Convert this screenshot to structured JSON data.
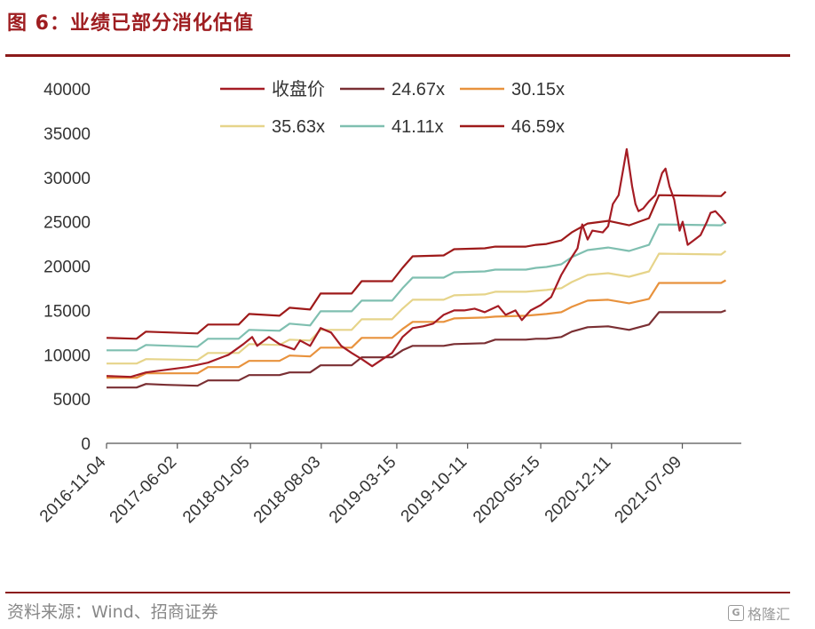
{
  "header": {
    "title": "图 6：业绩已部分消化估值"
  },
  "footer": {
    "source": "资料来源：Wind、招商证券",
    "watermark": "格隆汇"
  },
  "chart_data": {
    "type": "line",
    "title": "",
    "xlabel": "",
    "ylabel": "",
    "ylim": [
      0,
      40000
    ],
    "yticks": [
      0,
      5000,
      10000,
      15000,
      20000,
      25000,
      30000,
      35000,
      40000
    ],
    "xlim": [
      "2016-11-04",
      "2021-12-31"
    ],
    "xticks": [
      "2016-11-04",
      "2017-06-02",
      "2018-01-05",
      "2018-08-03",
      "2019-03-15",
      "2019-10-11",
      "2020-05-15",
      "2020-12-11",
      "2021-07-09"
    ],
    "grid": false,
    "legend": "top, two rows",
    "series": [
      {
        "name": "收盘价",
        "color": "#a51c24",
        "points": [
          [
            "2016-11-04",
            7600
          ],
          [
            "2017-01-15",
            7500
          ],
          [
            "2017-03-01",
            8000
          ],
          [
            "2017-05-01",
            8300
          ],
          [
            "2017-07-01",
            8600
          ],
          [
            "2017-09-01",
            9100
          ],
          [
            "2017-11-01",
            10000
          ],
          [
            "2017-12-15",
            11200
          ],
          [
            "2018-01-10",
            12000
          ],
          [
            "2018-01-25",
            11000
          ],
          [
            "2018-03-01",
            12000
          ],
          [
            "2018-04-01",
            11200
          ],
          [
            "2018-05-15",
            10600
          ],
          [
            "2018-06-01",
            11600
          ],
          [
            "2018-07-01",
            11000
          ],
          [
            "2018-08-01",
            13000
          ],
          [
            "2018-09-01",
            12500
          ],
          [
            "2018-10-01",
            11000
          ],
          [
            "2018-11-01",
            10200
          ],
          [
            "2018-12-01",
            9500
          ],
          [
            "2019-01-01",
            8700
          ],
          [
            "2019-02-01",
            9500
          ],
          [
            "2019-03-01",
            10200
          ],
          [
            "2019-04-01",
            12000
          ],
          [
            "2019-05-01",
            13000
          ],
          [
            "2019-06-01",
            13200
          ],
          [
            "2019-07-01",
            13500
          ],
          [
            "2019-08-01",
            14500
          ],
          [
            "2019-09-01",
            15000
          ],
          [
            "2019-10-01",
            15000
          ],
          [
            "2019-11-01",
            15200
          ],
          [
            "2019-12-01",
            14800
          ],
          [
            "2020-01-10",
            15500
          ],
          [
            "2020-02-01",
            14500
          ],
          [
            "2020-03-01",
            15000
          ],
          [
            "2020-03-20",
            13900
          ],
          [
            "2020-04-15",
            15000
          ],
          [
            "2020-05-15",
            15600
          ],
          [
            "2020-06-15",
            16500
          ],
          [
            "2020-07-15",
            19000
          ],
          [
            "2020-08-15",
            21000
          ],
          [
            "2020-09-01",
            22000
          ],
          [
            "2020-09-15",
            24700
          ],
          [
            "2020-10-01",
            23000
          ],
          [
            "2020-10-15",
            24000
          ],
          [
            "2020-11-15",
            23800
          ],
          [
            "2020-12-01",
            24500
          ],
          [
            "2020-12-15",
            27000
          ],
          [
            "2021-01-01",
            28000
          ],
          [
            "2021-01-15",
            31000
          ],
          [
            "2021-01-25",
            33200
          ],
          [
            "2021-02-10",
            29000
          ],
          [
            "2021-02-20",
            27000
          ],
          [
            "2021-03-01",
            26200
          ],
          [
            "2021-03-15",
            26500
          ],
          [
            "2021-04-01",
            27300
          ],
          [
            "2021-04-20",
            28000
          ],
          [
            "2021-05-10",
            30500
          ],
          [
            "2021-05-20",
            31000
          ],
          [
            "2021-06-01",
            29000
          ],
          [
            "2021-06-15",
            27500
          ],
          [
            "2021-07-01",
            24000
          ],
          [
            "2021-07-10",
            25000
          ],
          [
            "2021-07-25",
            22400
          ],
          [
            "2021-08-15",
            23000
          ],
          [
            "2021-09-01",
            23500
          ],
          [
            "2021-09-20",
            25000
          ],
          [
            "2021-10-01",
            26000
          ],
          [
            "2021-10-15",
            26200
          ],
          [
            "2021-11-01",
            25500
          ],
          [
            "2021-11-15",
            24800
          ]
        ]
      },
      {
        "name": "24.67x",
        "color": "#7a2f33",
        "points": [
          [
            "2016-11-04",
            6300
          ],
          [
            "2017-02-01",
            6300
          ],
          [
            "2017-03-01",
            6700
          ],
          [
            "2017-05-01",
            6600
          ],
          [
            "2017-08-01",
            6500
          ],
          [
            "2017-09-01",
            7100
          ],
          [
            "2017-12-01",
            7100
          ],
          [
            "2018-01-01",
            7700
          ],
          [
            "2018-04-01",
            7700
          ],
          [
            "2018-05-01",
            8000
          ],
          [
            "2018-07-01",
            8000
          ],
          [
            "2018-08-01",
            8800
          ],
          [
            "2018-11-01",
            8800
          ],
          [
            "2018-12-01",
            9700
          ],
          [
            "2019-03-01",
            9700
          ],
          [
            "2019-04-01",
            10500
          ],
          [
            "2019-05-01",
            11000
          ],
          [
            "2019-08-01",
            11000
          ],
          [
            "2019-09-01",
            11200
          ],
          [
            "2019-12-01",
            11300
          ],
          [
            "2020-01-01",
            11700
          ],
          [
            "2020-04-01",
            11700
          ],
          [
            "2020-05-01",
            11800
          ],
          [
            "2020-06-01",
            11800
          ],
          [
            "2020-07-15",
            12000
          ],
          [
            "2020-08-15",
            12600
          ],
          [
            "2020-10-01",
            13100
          ],
          [
            "2020-12-01",
            13200
          ],
          [
            "2021-02-01",
            12800
          ],
          [
            "2021-04-01",
            13400
          ],
          [
            "2021-05-01",
            14800
          ],
          [
            "2021-11-01",
            14800
          ],
          [
            "2021-11-15",
            15000
          ]
        ]
      },
      {
        "name": "30.15x",
        "color": "#e8923d",
        "points": [
          [
            "2016-11-04",
            7400
          ],
          [
            "2017-02-01",
            7400
          ],
          [
            "2017-03-01",
            7900
          ],
          [
            "2017-08-01",
            7900
          ],
          [
            "2017-09-01",
            8600
          ],
          [
            "2017-12-01",
            8600
          ],
          [
            "2018-01-01",
            9300
          ],
          [
            "2018-04-01",
            9300
          ],
          [
            "2018-05-01",
            9900
          ],
          [
            "2018-07-01",
            9800
          ],
          [
            "2018-08-01",
            10800
          ],
          [
            "2018-11-01",
            10800
          ],
          [
            "2018-12-01",
            11900
          ],
          [
            "2019-03-01",
            11900
          ],
          [
            "2019-04-01",
            12900
          ],
          [
            "2019-05-01",
            13700
          ],
          [
            "2019-08-01",
            13700
          ],
          [
            "2019-09-01",
            14100
          ],
          [
            "2019-12-01",
            14200
          ],
          [
            "2020-01-01",
            14300
          ],
          [
            "2020-04-01",
            14400
          ],
          [
            "2020-05-01",
            14500
          ],
          [
            "2020-06-01",
            14600
          ],
          [
            "2020-07-15",
            14800
          ],
          [
            "2020-08-15",
            15400
          ],
          [
            "2020-10-01",
            16100
          ],
          [
            "2020-12-01",
            16200
          ],
          [
            "2021-02-01",
            15800
          ],
          [
            "2021-04-01",
            16300
          ],
          [
            "2021-05-01",
            18100
          ],
          [
            "2021-11-01",
            18100
          ],
          [
            "2021-11-15",
            18400
          ]
        ]
      },
      {
        "name": "35.63x",
        "color": "#e6d48a",
        "points": [
          [
            "2016-11-04",
            9000
          ],
          [
            "2017-02-01",
            9000
          ],
          [
            "2017-03-01",
            9500
          ],
          [
            "2017-08-01",
            9400
          ],
          [
            "2017-09-01",
            10200
          ],
          [
            "2017-12-01",
            10200
          ],
          [
            "2018-01-01",
            11200
          ],
          [
            "2018-04-01",
            11100
          ],
          [
            "2018-05-01",
            11700
          ],
          [
            "2018-07-01",
            11600
          ],
          [
            "2018-08-01",
            12800
          ],
          [
            "2018-11-01",
            12800
          ],
          [
            "2018-12-01",
            14000
          ],
          [
            "2019-03-01",
            14000
          ],
          [
            "2019-04-01",
            15200
          ],
          [
            "2019-05-01",
            16200
          ],
          [
            "2019-08-01",
            16200
          ],
          [
            "2019-09-01",
            16700
          ],
          [
            "2019-12-01",
            16800
          ],
          [
            "2020-01-01",
            17100
          ],
          [
            "2020-04-01",
            17100
          ],
          [
            "2020-05-01",
            17200
          ],
          [
            "2020-06-01",
            17300
          ],
          [
            "2020-07-15",
            17500
          ],
          [
            "2020-08-15",
            18200
          ],
          [
            "2020-10-01",
            19000
          ],
          [
            "2020-12-01",
            19200
          ],
          [
            "2021-02-01",
            18800
          ],
          [
            "2021-04-01",
            19400
          ],
          [
            "2021-05-01",
            21400
          ],
          [
            "2021-11-01",
            21300
          ],
          [
            "2021-11-15",
            21700
          ]
        ]
      },
      {
        "name": "41.11x",
        "color": "#7fbfb0",
        "points": [
          [
            "2016-11-04",
            10500
          ],
          [
            "2017-02-01",
            10500
          ],
          [
            "2017-03-01",
            11100
          ],
          [
            "2017-08-01",
            10900
          ],
          [
            "2017-09-01",
            11800
          ],
          [
            "2017-12-01",
            11800
          ],
          [
            "2018-01-01",
            12800
          ],
          [
            "2018-04-01",
            12700
          ],
          [
            "2018-05-01",
            13500
          ],
          [
            "2018-07-01",
            13300
          ],
          [
            "2018-08-01",
            14900
          ],
          [
            "2018-11-01",
            14900
          ],
          [
            "2018-12-01",
            16100
          ],
          [
            "2019-03-01",
            16100
          ],
          [
            "2019-04-01",
            17500
          ],
          [
            "2019-05-01",
            18700
          ],
          [
            "2019-08-01",
            18700
          ],
          [
            "2019-09-01",
            19300
          ],
          [
            "2019-12-01",
            19400
          ],
          [
            "2020-01-01",
            19600
          ],
          [
            "2020-04-01",
            19600
          ],
          [
            "2020-05-01",
            19800
          ],
          [
            "2020-06-01",
            19900
          ],
          [
            "2020-07-15",
            20200
          ],
          [
            "2020-08-15",
            21000
          ],
          [
            "2020-10-01",
            21800
          ],
          [
            "2020-12-01",
            22100
          ],
          [
            "2021-02-01",
            21700
          ],
          [
            "2021-04-01",
            22400
          ],
          [
            "2021-05-01",
            24700
          ],
          [
            "2021-11-01",
            24600
          ],
          [
            "2021-11-15",
            25000
          ]
        ]
      },
      {
        "name": "46.59x",
        "color": "#9e1a1a",
        "points": [
          [
            "2016-11-04",
            11900
          ],
          [
            "2017-02-01",
            11800
          ],
          [
            "2017-03-01",
            12600
          ],
          [
            "2017-08-01",
            12400
          ],
          [
            "2017-09-01",
            13400
          ],
          [
            "2017-12-01",
            13400
          ],
          [
            "2018-01-01",
            14600
          ],
          [
            "2018-04-01",
            14400
          ],
          [
            "2018-05-01",
            15300
          ],
          [
            "2018-07-01",
            15100
          ],
          [
            "2018-08-01",
            16900
          ],
          [
            "2018-11-01",
            16900
          ],
          [
            "2018-12-01",
            18300
          ],
          [
            "2019-03-01",
            18300
          ],
          [
            "2019-04-01",
            19800
          ],
          [
            "2019-05-01",
            21100
          ],
          [
            "2019-08-01",
            21200
          ],
          [
            "2019-09-01",
            21900
          ],
          [
            "2019-12-01",
            22000
          ],
          [
            "2020-01-01",
            22200
          ],
          [
            "2020-04-01",
            22200
          ],
          [
            "2020-05-01",
            22400
          ],
          [
            "2020-06-01",
            22500
          ],
          [
            "2020-07-15",
            22900
          ],
          [
            "2020-08-15",
            23800
          ],
          [
            "2020-10-01",
            24800
          ],
          [
            "2020-12-01",
            25100
          ],
          [
            "2021-02-01",
            24600
          ],
          [
            "2021-04-01",
            25400
          ],
          [
            "2021-05-01",
            28000
          ],
          [
            "2021-11-01",
            27900
          ],
          [
            "2021-11-15",
            28400
          ]
        ]
      }
    ]
  }
}
